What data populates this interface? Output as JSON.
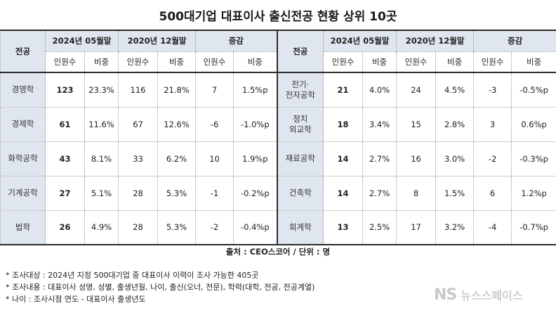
{
  "title": "500대기업 대표이사 출신전공 현황 상위 10곳",
  "headers": {
    "field": "전공",
    "period_2024": "2024년 05월말",
    "period_2020": "2020년 12월말",
    "change": "증감",
    "people": "인원수",
    "ratio": "비중"
  },
  "rows": [
    {
      "left": {
        "field": "경영학",
        "n24": "123",
        "r24": "23.3%",
        "n20": "116",
        "r20": "21.8%",
        "dn": "7",
        "dr": "1.5%p"
      },
      "right": {
        "field": "전기·\n전자공학",
        "n24": "21",
        "r24": "4.0%",
        "n20": "24",
        "r20": "4.5%",
        "dn": "-3",
        "dr": "-0.5%p"
      }
    },
    {
      "left": {
        "field": "경제학",
        "n24": "61",
        "r24": "11.6%",
        "n20": "67",
        "r20": "12.6%",
        "dn": "-6",
        "dr": "-1.0%p"
      },
      "right": {
        "field": "정치\n외교학",
        "n24": "18",
        "r24": "3.4%",
        "n20": "15",
        "r20": "2.8%",
        "dn": "3",
        "dr": "0.6%p"
      }
    },
    {
      "left": {
        "field": "화학공학",
        "n24": "43",
        "r24": "8.1%",
        "n20": "33",
        "r20": "6.2%",
        "dn": "10",
        "dr": "1.9%p"
      },
      "right": {
        "field": "재료공학",
        "n24": "14",
        "r24": "2.7%",
        "n20": "16",
        "r20": "3.0%",
        "dn": "-2",
        "dr": "-0.3%p"
      }
    },
    {
      "left": {
        "field": "기계공학",
        "n24": "27",
        "r24": "5.1%",
        "n20": "28",
        "r20": "5.3%",
        "dn": "-1",
        "dr": "-0.2%p"
      },
      "right": {
        "field": "건축학",
        "n24": "14",
        "r24": "2.7%",
        "n20": "8",
        "r20": "1.5%",
        "dn": "6",
        "dr": "1.2%p"
      }
    },
    {
      "left": {
        "field": "법학",
        "n24": "26",
        "r24": "4.9%",
        "n20": "28",
        "r20": "5.3%",
        "dn": "-2",
        "dr": "-0.4%p"
      },
      "right": {
        "field": "회계학",
        "n24": "13",
        "r24": "2.5%",
        "n20": "17",
        "r20": "3.2%",
        "dn": "-4",
        "dr": "-0.7%p"
      }
    }
  ],
  "source": "출처 : CEO스코어 / 단위 : 명",
  "notes": [
    "* 조사대상 : 2024년 지정 500대기업 중 대표이사 이력이 조사 가능한 405곳",
    "* 조사내용 : 대표이사 성명, 성별, 출생년월, 나이, 출신(오너, 전문), 학력(대학, 전공, 전공계열)",
    "* 나이 : 조사시점 연도 - 대표이사 출생년도"
  ],
  "logo": {
    "mark": "NS",
    "text": "뉴스스페이스"
  }
}
